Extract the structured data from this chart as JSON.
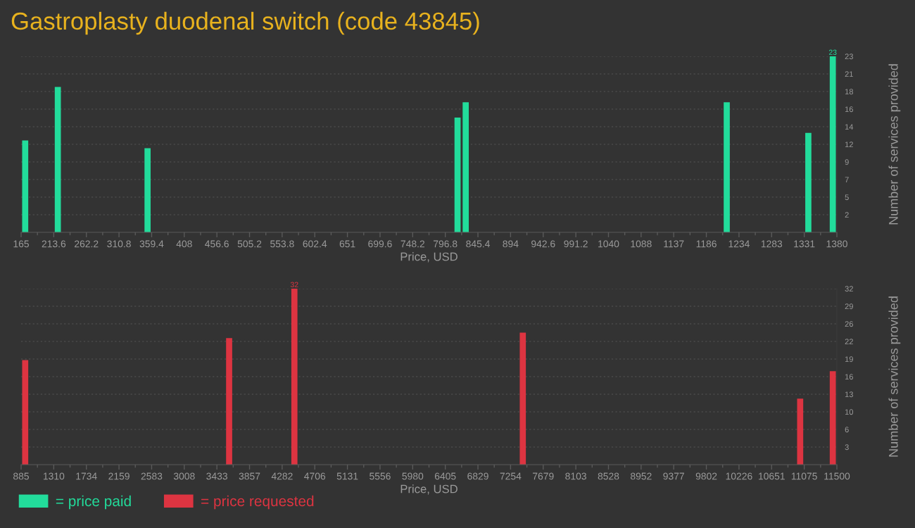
{
  "chart_data": [
    {
      "type": "histogram",
      "title": "Gastroplasty duodenal switch (code 43845)",
      "xlabel": "Price, USD",
      "ylabel": "Number of services provided",
      "bins": [
        165,
        177.15,
        189.3,
        201.45,
        213.6,
        225.75,
        237.9,
        250.05,
        262.2,
        274.35,
        286.5,
        298.65,
        310.8,
        322.95,
        335.1,
        347.25,
        359.4,
        371.55,
        383.7,
        395.85,
        408,
        420.15,
        432.3,
        444.45,
        456.6,
        468.75,
        480.9,
        493.05,
        505.2,
        517.35,
        529.5,
        541.65,
        553.8,
        565.95,
        578.1,
        590.25,
        602.4,
        614.55,
        626.7,
        638.85,
        651,
        663.15,
        675.3,
        687.45,
        699.6,
        711.75,
        723.9,
        736.05,
        748.2,
        760.35,
        772.5,
        784.65,
        796.8,
        808.95,
        821.1,
        833.25,
        845.4,
        857.55,
        869.7,
        881.85,
        894,
        906.15,
        918.3,
        930.45,
        942.6,
        954.75,
        966.9,
        979.05,
        991.2,
        1003.35,
        1015.5,
        1027.65,
        1039.8,
        1051.95,
        1064.1,
        1076.25,
        1088.4,
        1100.55,
        1112.7,
        1124.85,
        1137,
        1149.15,
        1161.3,
        1173.45,
        1185.6,
        1197.75,
        1209.9,
        1222.05,
        1234.2,
        1246.35,
        1258.5,
        1270.65,
        1282.8,
        1294.95,
        1307.1,
        1319.25,
        1331.4,
        1343.55,
        1355.7,
        1367.85,
        1380
      ],
      "series": [
        {
          "name": "= price paid",
          "color": "#22dc9b",
          "values": [
            12,
            0,
            0,
            0,
            19,
            0,
            0,
            0,
            0,
            0,
            0,
            0,
            0,
            0,
            0,
            11,
            0,
            0,
            0,
            0,
            0,
            0,
            0,
            0,
            0,
            0,
            0,
            0,
            0,
            0,
            0,
            0,
            0,
            0,
            0,
            0,
            0,
            0,
            0,
            0,
            0,
            0,
            0,
            0,
            0,
            0,
            0,
            0,
            0,
            0,
            0,
            0,
            0,
            15,
            17,
            0,
            0,
            0,
            0,
            0,
            0,
            0,
            0,
            0,
            0,
            0,
            0,
            0,
            0,
            0,
            0,
            0,
            0,
            0,
            0,
            0,
            0,
            0,
            0,
            0,
            0,
            0,
            0,
            0,
            0,
            0,
            17,
            0,
            0,
            0,
            0,
            0,
            0,
            0,
            0,
            0,
            13,
            0,
            0,
            23
          ],
          "value_labels": [
            null,
            null,
            null,
            null,
            null,
            null,
            null,
            null,
            null,
            null,
            null,
            null,
            null,
            null,
            null,
            null,
            null,
            null,
            null,
            null,
            null,
            null,
            null,
            null,
            null,
            null,
            null,
            null,
            null,
            null,
            null,
            null,
            null,
            null,
            null,
            null,
            null,
            null,
            null,
            null,
            null,
            null,
            null,
            null,
            null,
            null,
            null,
            null,
            null,
            null,
            null,
            null,
            null,
            null,
            null,
            null,
            null,
            null,
            null,
            null,
            null,
            null,
            null,
            null,
            null,
            null,
            null,
            null,
            null,
            null,
            null,
            null,
            null,
            null,
            null,
            null,
            null,
            null,
            null,
            null,
            null,
            null,
            null,
            null,
            null,
            null,
            null,
            null,
            null,
            null,
            null,
            null,
            null,
            null,
            null,
            null,
            null,
            null,
            null,
            "23"
          ]
        }
      ],
      "xlim": [
        165,
        1380
      ],
      "xticks": [
        165,
        213.6,
        262.2,
        310.8,
        359.4,
        408,
        456.6,
        505.2,
        553.8,
        602.4,
        651,
        699.6,
        748.2,
        796.8,
        845.4,
        894,
        942.6,
        991.2,
        {
          "value": 1039.8,
          "label": "1040"
        },
        {
          "value": 1088.4,
          "label": "1088"
        },
        1137,
        {
          "value": 1185.6,
          "label": "1186"
        },
        {
          "value": 1234.2,
          "label": "1234"
        },
        {
          "value": 1282.8,
          "label": "1283"
        },
        {
          "value": 1331.4,
          "label": "1331"
        },
        1380
      ],
      "ylim": [
        0,
        23
      ],
      "yticks": [
        {
          "value": 2.3,
          "label": "2"
        },
        {
          "value": 4.6,
          "label": "5"
        },
        {
          "value": 6.9,
          "label": "7"
        },
        {
          "value": 9.2,
          "label": "9"
        },
        {
          "value": 11.5,
          "label": "12"
        },
        {
          "value": 13.8,
          "label": "14"
        },
        {
          "value": 16.1,
          "label": "16"
        },
        {
          "value": 18.4,
          "label": "18"
        },
        {
          "value": 20.7,
          "label": "21"
        },
        23
      ],
      "grid": "y",
      "legend": "bottom left"
    },
    {
      "type": "histogram",
      "xlabel": "Price, USD",
      "ylabel": "Number of services provided",
      "bins": [
        885,
        991.15,
        1097.3,
        1203.45,
        1309.6,
        1415.75,
        1521.9,
        1628.05,
        1734.2,
        1840.35,
        1946.5,
        2052.65,
        2158.8,
        2264.95,
        2371.1,
        2477.25,
        2583.4,
        2689.55,
        2795.7,
        2901.85,
        3008,
        3114.15,
        3220.3,
        3326.45,
        3432.6,
        3538.75,
        3644.9,
        3751.05,
        3857.2,
        3963.35,
        4069.5,
        4175.65,
        4281.8,
        4387.95,
        4494.1,
        4600.25,
        4706.4,
        4812.55,
        4918.7,
        5024.85,
        5131,
        5237.15,
        5343.3,
        5449.45,
        5555.6,
        5661.75,
        5767.9,
        5874.05,
        5980.2,
        6086.35,
        6192.5,
        6298.65,
        6404.8,
        6510.95,
        6617.1,
        6723.25,
        6829.4,
        6935.55,
        7041.7,
        7147.85,
        7254,
        7360.15,
        7466.3,
        7572.45,
        7678.6,
        7784.75,
        7890.9,
        7997.05,
        8103.2,
        8209.35,
        8315.5,
        8421.65,
        8527.8,
        8633.95,
        8740.1,
        8846.25,
        8952.4,
        9058.55,
        9164.7,
        9270.85,
        9377,
        9483.15,
        9589.3,
        9695.45,
        9801.6,
        9907.75,
        10013.9,
        10120.05,
        10226.2,
        10332.35,
        10438.5,
        10544.65,
        10650.8,
        10756.95,
        10863.1,
        10969.25,
        11075.4,
        11181.55,
        11287.7,
        11393.85,
        11500
      ],
      "series": [
        {
          "name": "= price requested",
          "color": "#dd3441",
          "values": [
            19,
            0,
            0,
            0,
            0,
            0,
            0,
            0,
            0,
            0,
            0,
            0,
            0,
            0,
            0,
            0,
            0,
            0,
            0,
            0,
            0,
            0,
            0,
            0,
            0,
            23,
            0,
            0,
            0,
            0,
            0,
            0,
            0,
            32,
            0,
            0,
            0,
            0,
            0,
            0,
            0,
            0,
            0,
            0,
            0,
            0,
            0,
            0,
            0,
            0,
            0,
            0,
            0,
            0,
            0,
            0,
            0,
            0,
            0,
            0,
            0,
            24,
            0,
            0,
            0,
            0,
            0,
            0,
            0,
            0,
            0,
            0,
            0,
            0,
            0,
            0,
            0,
            0,
            0,
            0,
            0,
            0,
            0,
            0,
            0,
            0,
            0,
            0,
            0,
            0,
            0,
            0,
            0,
            0,
            0,
            12,
            0,
            0,
            0,
            17
          ],
          "value_labels": [
            null,
            null,
            null,
            null,
            null,
            null,
            null,
            null,
            null,
            null,
            null,
            null,
            null,
            null,
            null,
            null,
            null,
            null,
            null,
            null,
            null,
            null,
            null,
            null,
            null,
            null,
            null,
            null,
            null,
            null,
            null,
            null,
            null,
            "32",
            null,
            null,
            null,
            null,
            null,
            null,
            null,
            null,
            null,
            null,
            null,
            null,
            null,
            null,
            null,
            null,
            null,
            null,
            null,
            null,
            null,
            null,
            null,
            null,
            null,
            null,
            null,
            null,
            null,
            null,
            null,
            null,
            null,
            null,
            null,
            null,
            null,
            null,
            null,
            null,
            null,
            null,
            null,
            null,
            null,
            null,
            null,
            null,
            null,
            null,
            null,
            null,
            null,
            null,
            null,
            null,
            null,
            null,
            null,
            null,
            null,
            null,
            null,
            null,
            null,
            null
          ]
        }
      ],
      "xlim": [
        885,
        11500
      ],
      "xticks": [
        885,
        {
          "value": 1309.6,
          "label": "1310"
        },
        {
          "value": 1734.2,
          "label": "1734"
        },
        {
          "value": 2158.8,
          "label": "2159"
        },
        {
          "value": 2583.4,
          "label": "2583"
        },
        3008,
        {
          "value": 3432.6,
          "label": "3433"
        },
        {
          "value": 3857.2,
          "label": "3857"
        },
        {
          "value": 4281.8,
          "label": "4282"
        },
        {
          "value": 4706.4,
          "label": "4706"
        },
        5131,
        {
          "value": 5555.6,
          "label": "5556"
        },
        {
          "value": 5980.2,
          "label": "5980"
        },
        {
          "value": 6404.8,
          "label": "6405"
        },
        {
          "value": 6829.4,
          "label": "6829"
        },
        7254,
        {
          "value": 7678.6,
          "label": "7679"
        },
        {
          "value": 8103.2,
          "label": "8103"
        },
        {
          "value": 8527.8,
          "label": "8528"
        },
        {
          "value": 8952.4,
          "label": "8952"
        },
        9377,
        {
          "value": 9801.6,
          "label": "9802"
        },
        {
          "value": 10226.2,
          "label": "10226"
        },
        {
          "value": 10650.8,
          "label": "10651"
        },
        {
          "value": 11075.4,
          "label": "11075"
        },
        11500
      ],
      "ylim": [
        0,
        32
      ],
      "yticks": [
        {
          "value": 3.2,
          "label": "3"
        },
        {
          "value": 6.4,
          "label": "6"
        },
        {
          "value": 9.6,
          "label": "10"
        },
        {
          "value": 12.8,
          "label": "13"
        },
        16,
        {
          "value": 19.2,
          "label": "19"
        },
        {
          "value": 22.4,
          "label": "22"
        },
        {
          "value": 25.6,
          "label": "26"
        },
        {
          "value": 28.8,
          "label": "29"
        },
        32
      ],
      "grid": "y",
      "legend": "bottom left"
    }
  ]
}
